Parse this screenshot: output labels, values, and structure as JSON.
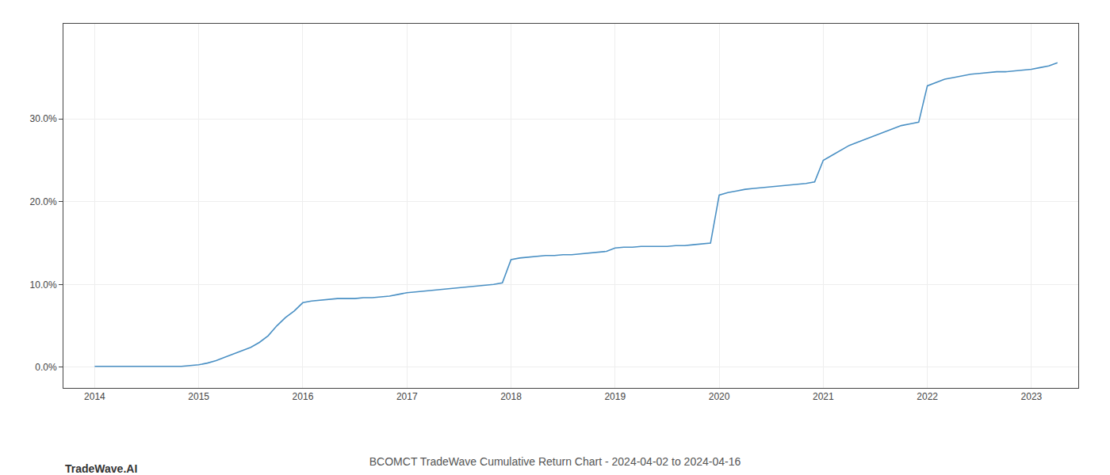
{
  "chart_data": {
    "type": "line",
    "title": "BCOMCT TradeWave Cumulative Return Chart - 2024-04-02 to 2024-04-16",
    "annotations": [
      "TradeWave.AI"
    ],
    "color": "#4a90c4",
    "grid": true,
    "x": [
      2014.0,
      2014.083,
      2014.167,
      2014.25,
      2014.333,
      2014.417,
      2014.5,
      2014.583,
      2014.667,
      2014.75,
      2014.833,
      2014.917,
      2015.0,
      2015.083,
      2015.167,
      2015.25,
      2015.333,
      2015.417,
      2015.5,
      2015.583,
      2015.667,
      2015.75,
      2015.833,
      2015.917,
      2016.0,
      2016.083,
      2016.167,
      2016.25,
      2016.333,
      2016.417,
      2016.5,
      2016.583,
      2016.667,
      2016.75,
      2016.833,
      2016.917,
      2017.0,
      2017.083,
      2017.167,
      2017.25,
      2017.333,
      2017.417,
      2017.5,
      2017.583,
      2017.667,
      2017.75,
      2017.833,
      2017.917,
      2018.0,
      2018.083,
      2018.167,
      2018.25,
      2018.333,
      2018.417,
      2018.5,
      2018.583,
      2018.667,
      2018.75,
      2018.833,
      2018.917,
      2019.0,
      2019.083,
      2019.167,
      2019.25,
      2019.333,
      2019.417,
      2019.5,
      2019.583,
      2019.667,
      2019.75,
      2019.833,
      2019.917,
      2020.0,
      2020.083,
      2020.167,
      2020.25,
      2020.333,
      2020.417,
      2020.5,
      2020.583,
      2020.667,
      2020.75,
      2020.833,
      2020.917,
      2021.0,
      2021.083,
      2021.167,
      2021.25,
      2021.333,
      2021.417,
      2021.5,
      2021.583,
      2021.667,
      2021.75,
      2021.833,
      2021.917,
      2022.0,
      2022.083,
      2022.167,
      2022.25,
      2022.333,
      2022.417,
      2022.5,
      2022.583,
      2022.667,
      2022.75,
      2022.833,
      2022.917,
      2023.0,
      2023.083,
      2023.167,
      2023.25
    ],
    "values": [
      0.001,
      0.001,
      0.001,
      0.001,
      0.001,
      0.001,
      0.001,
      0.001,
      0.001,
      0.001,
      0.001,
      0.002,
      0.003,
      0.005,
      0.008,
      0.012,
      0.016,
      0.02,
      0.024,
      0.03,
      0.038,
      0.05,
      0.06,
      0.068,
      0.078,
      0.08,
      0.081,
      0.082,
      0.083,
      0.083,
      0.083,
      0.084,
      0.084,
      0.085,
      0.086,
      0.088,
      0.09,
      0.091,
      0.092,
      0.093,
      0.094,
      0.095,
      0.096,
      0.097,
      0.098,
      0.099,
      0.1,
      0.102,
      0.13,
      0.132,
      0.133,
      0.134,
      0.135,
      0.135,
      0.136,
      0.136,
      0.137,
      0.138,
      0.139,
      0.14,
      0.144,
      0.145,
      0.145,
      0.146,
      0.146,
      0.146,
      0.146,
      0.147,
      0.147,
      0.148,
      0.149,
      0.15,
      0.208,
      0.211,
      0.213,
      0.215,
      0.216,
      0.217,
      0.218,
      0.219,
      0.22,
      0.221,
      0.222,
      0.224,
      0.25,
      0.256,
      0.262,
      0.268,
      0.272,
      0.276,
      0.28,
      0.284,
      0.288,
      0.292,
      0.294,
      0.296,
      0.34,
      0.344,
      0.348,
      0.35,
      0.352,
      0.354,
      0.355,
      0.356,
      0.357,
      0.357,
      0.358,
      0.359,
      0.36,
      0.362,
      0.364,
      0.368
    ],
    "xlim": [
      2013.7,
      2023.45
    ],
    "xticks": [
      2014,
      2015,
      2016,
      2017,
      2018,
      2019,
      2020,
      2021,
      2022,
      2023
    ],
    "ylim": [
      -0.025,
      0.415
    ],
    "yticks": [
      {
        "value": 0.0,
        "label": "0.0%"
      },
      {
        "value": 0.1,
        "label": "10.0%"
      },
      {
        "value": 0.2,
        "label": "20.0%"
      },
      {
        "value": 0.3,
        "label": "30.0%"
      }
    ]
  }
}
